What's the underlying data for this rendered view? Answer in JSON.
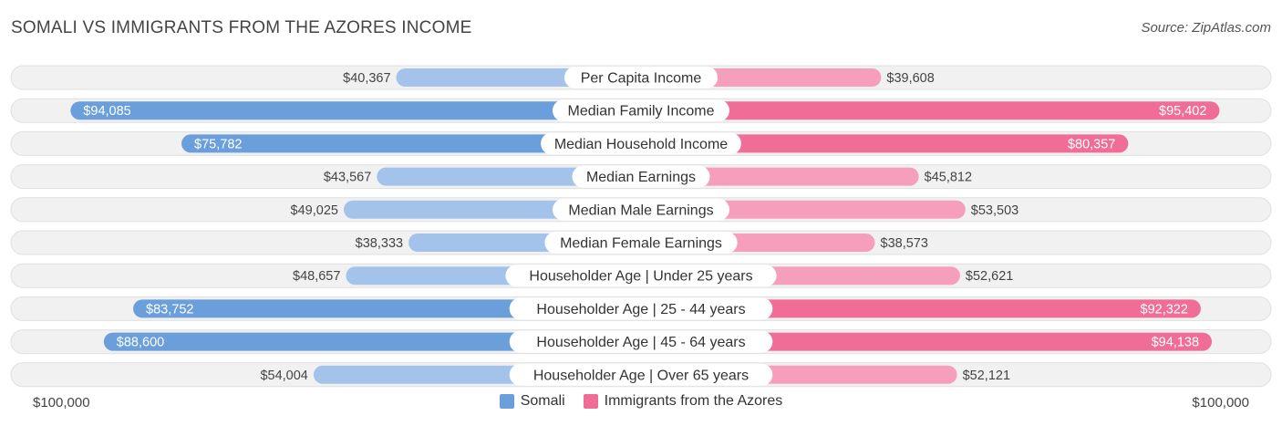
{
  "title": "SOMALI VS IMMIGRANTS FROM THE AZORES INCOME",
  "source": "Source: ZipAtlas.com",
  "axis": {
    "left_label": "$100,000",
    "right_label": "$100,000"
  },
  "colors": {
    "somali_strong": "#6a9fdc",
    "somali_light": "#a4c3ea",
    "azores_strong": "#f06d97",
    "azores_light": "#f59fbd",
    "track": "#f1f1f1",
    "track_border": "#e0e0e0"
  },
  "legend": [
    {
      "name": "Somali",
      "color": "#6a9fdc"
    },
    {
      "name": "Immigrants from the Azores",
      "color": "#f06d97"
    }
  ],
  "chart_data": {
    "type": "bar",
    "orientation": "horizontal-diverging",
    "max": 100000,
    "categories": [
      "Per Capita Income",
      "Median Family Income",
      "Median Household Income",
      "Median Earnings",
      "Median Male Earnings",
      "Median Female Earnings",
      "Householder Age | Under 25 years",
      "Householder Age | 25 - 44 years",
      "Householder Age | 45 - 64 years",
      "Householder Age | Over 65 years"
    ],
    "series": [
      {
        "name": "Somali",
        "values": [
          40367,
          94085,
          75782,
          43567,
          49025,
          38333,
          48657,
          83752,
          88600,
          54004
        ],
        "labels": [
          "$40,367",
          "$94,085",
          "$75,782",
          "$43,567",
          "$49,025",
          "$38,333",
          "$48,657",
          "$83,752",
          "$88,600",
          "$54,004"
        ]
      },
      {
        "name": "Immigrants from the Azores",
        "values": [
          39608,
          95402,
          80357,
          45812,
          53503,
          38573,
          52621,
          92322,
          94138,
          52121
        ],
        "labels": [
          "$39,608",
          "$95,402",
          "$80,357",
          "$45,812",
          "$53,503",
          "$38,573",
          "$52,621",
          "$92,322",
          "$94,138",
          "$52,121"
        ]
      }
    ]
  }
}
